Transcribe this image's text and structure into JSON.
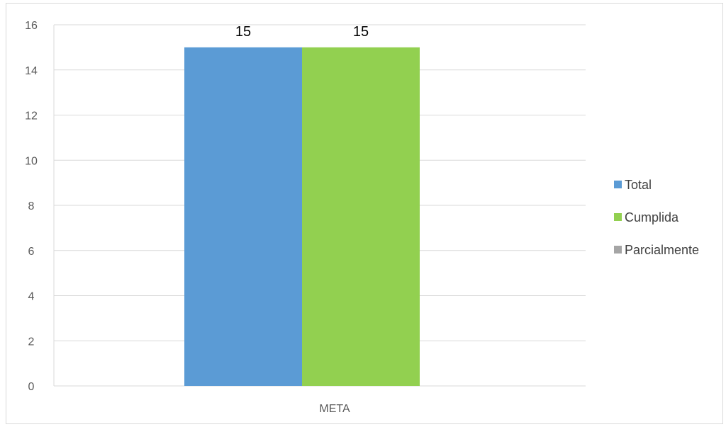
{
  "chart_data": {
    "type": "bar",
    "title": "",
    "xlabel": "",
    "ylabel": "",
    "categories": [
      "META"
    ],
    "series": [
      {
        "name": "Total",
        "values": [
          15
        ],
        "color": "#5b9bd5"
      },
      {
        "name": "Cumplida",
        "values": [
          15
        ],
        "color": "#92d050"
      },
      {
        "name": "Parcialmente",
        "values": [
          null
        ],
        "color": "#a5a5a5"
      }
    ],
    "ylim": [
      0,
      16
    ],
    "yticks": [
      0,
      2,
      4,
      6,
      8,
      10,
      12,
      14,
      16
    ],
    "data_labels": true,
    "grid": true,
    "legend_position": "right"
  }
}
